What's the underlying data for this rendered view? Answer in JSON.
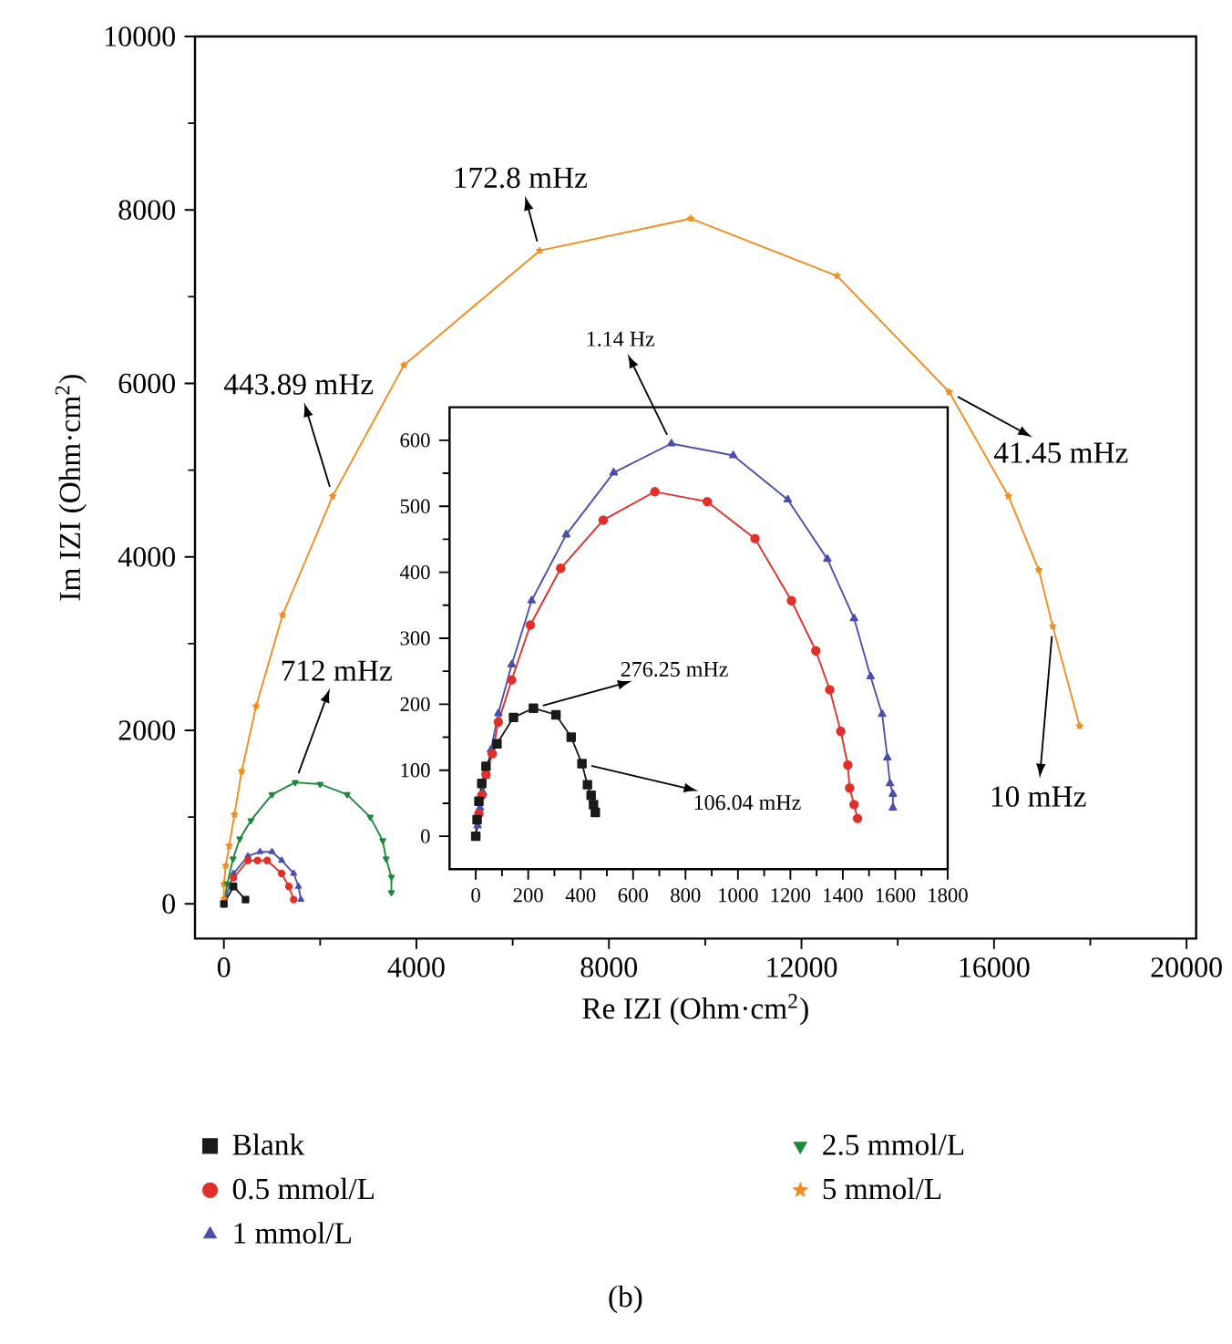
{
  "chart_data": [
    {
      "type": "line",
      "xlabel": "Re IZI (Ohm·cm$^{2}$)",
      "ylabel": "Im IZI (Ohm·cm$^{2}$)",
      "xlim": [
        -600,
        20200
      ],
      "ylim": [
        -400,
        10000
      ],
      "xticks": [
        0,
        4000,
        8000,
        12000,
        16000,
        20000
      ],
      "yticks": [
        0,
        2000,
        4000,
        6000,
        8000,
        10000
      ],
      "legend": "bottom",
      "series": [
        {
          "name": "Blank",
          "color": "#1a1a1a",
          "marker": "square",
          "x": [
            0,
            200,
            450
          ],
          "values": [
            0,
            200,
            50
          ]
        },
        {
          "name": "0.5 mmol/L",
          "color": "#e0302a",
          "marker": "circle",
          "x": [
            200,
            500,
            700,
            900,
            1200,
            1350,
            1450
          ],
          "values": [
            300,
            500,
            500,
            500,
            350,
            200,
            50
          ]
        },
        {
          "name": "1 mmol/L",
          "color": "#4a4fae",
          "marker": "triangle",
          "x": [
            0,
            200,
            500,
            750,
            1000,
            1200,
            1450,
            1550,
            1600
          ],
          "values": [
            0,
            350,
            550,
            600,
            600,
            500,
            350,
            200,
            50
          ]
        },
        {
          "name": "2.5 mmol/L",
          "color": "#1a8a3a",
          "marker": "triangle-down",
          "x": [
            0,
            70,
            190,
            330,
            560,
            1000,
            1480,
            2000,
            2560,
            3040,
            3300,
            3370,
            3480,
            3480
          ],
          "values": [
            0,
            230,
            520,
            750,
            960,
            1260,
            1400,
            1380,
            1260,
            1000,
            730,
            520,
            310,
            130
          ]
        },
        {
          "name": "5 mmol/L",
          "color": "#f28c1c",
          "marker": "star",
          "x": [
            0,
            0,
            40,
            110,
            220,
            370,
            670,
            1220,
            2260,
            3740,
            6560,
            9700,
            12740,
            15070,
            16300,
            16930,
            17220,
            17780
          ],
          "values": [
            60,
            230,
            440,
            670,
            1030,
            1530,
            2280,
            3330,
            4700,
            6210,
            7530,
            7900,
            7240,
            5900,
            4700,
            3850,
            3200,
            2050
          ]
        }
      ],
      "annotations": [
        {
          "text": "172.8 mHz",
          "x": 6560,
          "y": 7530
        },
        {
          "text": "443.89 mHz",
          "x": 2260,
          "y": 4700
        },
        {
          "text": "41.45 mHz",
          "x": 15070,
          "y": 5900
        },
        {
          "text": "712 mHz",
          "x": 1480,
          "y": 1400
        },
        {
          "text": "10 mHz",
          "x": 17220,
          "y": 3200
        },
        "(b)"
      ]
    },
    {
      "type": "line",
      "xlim": [
        -100,
        1800
      ],
      "ylim": [
        -50,
        650
      ],
      "xticks": [
        0,
        200,
        400,
        600,
        800,
        1000,
        1200,
        1400,
        1600,
        1800
      ],
      "yticks": [
        0,
        100,
        200,
        300,
        400,
        500,
        600
      ],
      "series": [
        {
          "color": "#1a1a1a",
          "marker": "square",
          "x": [
            0,
            5,
            12,
            23,
            39,
            81,
            144,
            220,
            306,
            364,
            405,
            426,
            440,
            449,
            456
          ],
          "values": [
            0,
            25,
            53,
            80,
            106,
            140,
            180,
            194,
            184,
            150,
            110,
            78,
            62,
            48,
            36
          ]
        },
        {
          "color": "#e0302a",
          "marker": "circle",
          "x": [
            0,
            12,
            23,
            39,
            63,
            86,
            137,
            208,
            324,
            486,
            683,
            883,
            1065,
            1204,
            1297,
            1350,
            1392,
            1419,
            1426,
            1443,
            1456
          ],
          "values": [
            0,
            34,
            62,
            94,
            125,
            173,
            237,
            320,
            406,
            479,
            522,
            507,
            451,
            357,
            281,
            222,
            159,
            108,
            73,
            48,
            27
          ]
        },
        {
          "color": "#4a4fae",
          "marker": "triangle",
          "x": [
            0,
            7,
            16,
            28,
            39,
            58,
            86,
            137,
            213,
            345,
            526,
            746,
            982,
            1190,
            1341,
            1443,
            1506,
            1550,
            1570,
            1580,
            1591,
            1591
          ],
          "values": [
            0,
            16,
            43,
            66,
            91,
            131,
            186,
            260,
            357,
            457,
            551,
            595,
            577,
            510,
            420,
            330,
            242,
            185,
            119,
            80,
            64,
            43
          ]
        }
      ],
      "annotations": [
        {
          "text": "1.14 Hz",
          "x": 746,
          "y": 595
        },
        {
          "text": "276.25 mHz",
          "x": 220,
          "y": 194
        },
        {
          "text": "106.04 mHz",
          "x": 405,
          "y": 110
        }
      ]
    }
  ]
}
